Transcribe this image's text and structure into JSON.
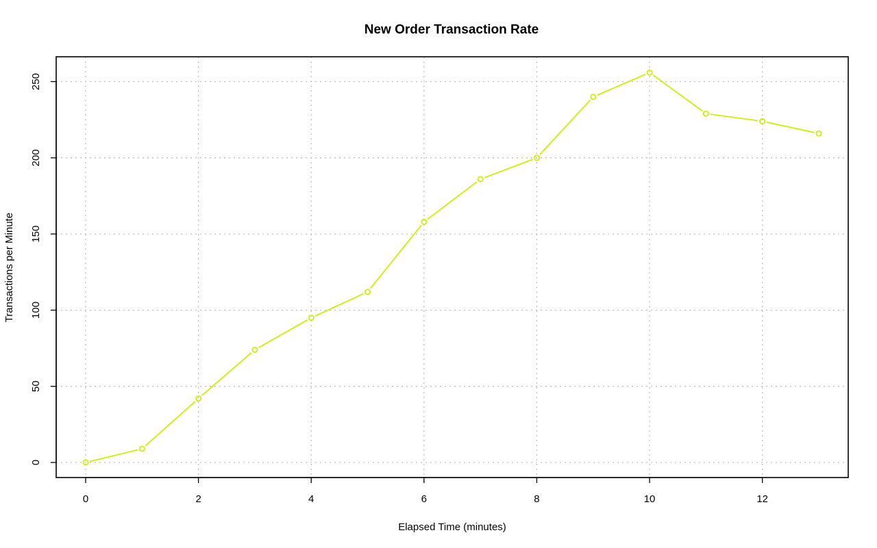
{
  "chart_data": {
    "type": "line",
    "title": "New Order Transaction Rate",
    "xlabel": "Elapsed Time (minutes)",
    "ylabel": "Transactions per Minute",
    "xlim": [
      0,
      13
    ],
    "ylim": [
      0,
      256
    ],
    "x_ticks": [
      0,
      2,
      4,
      6,
      8,
      10,
      12
    ],
    "y_ticks": [
      0,
      50,
      100,
      150,
      200,
      250
    ],
    "grid": true,
    "markers": "open-circle",
    "series": [
      {
        "color": "#ccf000",
        "x": [
          0,
          1,
          2,
          3,
          4,
          5,
          6,
          7,
          8,
          9,
          10,
          11,
          12,
          13
        ],
        "values": [
          0,
          9,
          42,
          74,
          95,
          112,
          158,
          186,
          200,
          240,
          256,
          229,
          224,
          216
        ]
      }
    ]
  }
}
